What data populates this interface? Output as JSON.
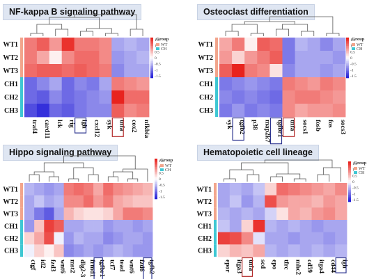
{
  "colors": {
    "high": "#e8231e",
    "mid": "#ffffff",
    "low": "#2520d8",
    "wt": "#f2a58c",
    "ch": "#3fc7d3",
    "highlight_box": "#2d3590",
    "tnfa_box": "#b22a2a"
  },
  "legend": {
    "title": "Group",
    "wt": "WT",
    "ch": "CH",
    "ticks": [
      "1.5",
      "1",
      "0.5",
      "0",
      "-0.5",
      "-1",
      "-1.5"
    ]
  },
  "chart_data": [
    {
      "type": "heatmap",
      "title": "NF-kappa B signaling pathway",
      "rows": [
        "WT1",
        "WT2",
        "WT3",
        "CH1",
        "CH2",
        "CH3"
      ],
      "columns": [
        "traf4",
        "card11",
        "lck",
        "rig",
        "igh",
        "cxcl12",
        "syk",
        "tnfa",
        "cox2",
        "nfkbia"
      ],
      "highlighted_columns": [
        "igh",
        "tnfa"
      ],
      "scale": [
        -1.5,
        1.5
      ],
      "values": [
        [
          0.9,
          1.1,
          0.7,
          1.4,
          0.9,
          0.9,
          0.8,
          -0.6,
          -0.5,
          -0.6
        ],
        [
          0.9,
          0.6,
          0.1,
          0.8,
          1.0,
          1.0,
          0.8,
          -0.7,
          -0.6,
          -0.5
        ],
        [
          1.0,
          1.1,
          1.1,
          1.0,
          1.1,
          1.0,
          0.9,
          -0.8,
          -0.6,
          -0.6
        ],
        [
          -1.0,
          -0.8,
          -0.6,
          -1.0,
          -0.8,
          -0.9,
          -0.6,
          0.9,
          0.8,
          0.7
        ],
        [
          -1.0,
          -1.1,
          -0.8,
          -1.0,
          -0.9,
          -0.8,
          -0.7,
          1.5,
          1.0,
          1.0
        ],
        [
          -1.2,
          -1.4,
          -1.0,
          -1.1,
          -0.9,
          -0.8,
          -0.8,
          1.1,
          0.8,
          0.9
        ]
      ]
    },
    {
      "type": "heatmap",
      "title": "Osteoclast differentiation",
      "rows": [
        "WT1",
        "WT2",
        "WT3",
        "CH1",
        "CH2",
        "CH3"
      ],
      "columns": [
        "syk",
        "tgfb2",
        "p38",
        "map2k7",
        "tgfbr1",
        "tnfa",
        "socs1",
        "fosb",
        "fos",
        "socs3"
      ],
      "highlighted_columns": [
        "tgfb2",
        "tgfbr1",
        "tnfa"
      ],
      "scale": [
        -1.5,
        1.5
      ],
      "values": [
        [
          0.6,
          0.9,
          0.1,
          1.1,
          1.0,
          -0.9,
          -0.5,
          -0.6,
          -0.8,
          -0.6
        ],
        [
          0.7,
          0.3,
          0.7,
          0.9,
          1.1,
          -0.9,
          -0.6,
          -0.6,
          -0.6,
          -0.7
        ],
        [
          1.1,
          1.5,
          0.9,
          0.8,
          0.2,
          -0.8,
          -0.6,
          -0.6,
          -0.7,
          -0.6
        ],
        [
          -0.9,
          -0.8,
          -0.7,
          -0.8,
          -0.9,
          0.9,
          0.8,
          0.7,
          0.9,
          0.8
        ],
        [
          -0.8,
          -0.9,
          -0.8,
          -0.9,
          -1.0,
          0.8,
          0.9,
          0.9,
          0.8,
          0.7
        ],
        [
          -0.9,
          -0.7,
          -0.9,
          -0.8,
          -0.9,
          0.8,
          0.6,
          0.7,
          0.7,
          0.8
        ]
      ]
    },
    {
      "type": "heatmap",
      "title": "Hippo signaling pathway",
      "rows": [
        "WT1",
        "WT2",
        "WT3",
        "CH1",
        "CH2",
        "CH3"
      ],
      "columns": [
        "ctgf",
        "id2",
        "fzd3",
        "wnt6",
        "mst2",
        "dlg2-3",
        "frmd1",
        "tgfbr1",
        "tcf7",
        "tead",
        "wnt6",
        "fzd6",
        "tgfb2"
      ],
      "highlighted_columns": [
        "tgfbr1",
        "tgfb2"
      ],
      "scale": [
        -1.5,
        1.5
      ],
      "values": [
        [
          -0.5,
          -0.6,
          -0.7,
          -0.6,
          0.9,
          1.0,
          0.9,
          0.6,
          1.0,
          0.8,
          0.7,
          0.6,
          0.5
        ],
        [
          -0.6,
          -0.4,
          -0.6,
          -0.5,
          0.8,
          0.8,
          1.0,
          0.7,
          0.9,
          0.6,
          0.5,
          0.4,
          0.4
        ],
        [
          -0.6,
          -0.9,
          -1.1,
          -0.6,
          0.5,
          0.3,
          0.2,
          0.2,
          0.3,
          0.6,
          0.9,
          0.9,
          0.8
        ],
        [
          -0.7,
          0.4,
          1.3,
          1.1,
          -0.6,
          -0.6,
          -0.5,
          -0.5,
          -0.7,
          -0.6,
          -0.6,
          -0.7,
          -0.6
        ],
        [
          0.3,
          0.6,
          1.2,
          -0.1,
          -0.7,
          -0.5,
          -0.6,
          -0.6,
          -0.8,
          -0.7,
          -0.6,
          -0.6,
          -0.7
        ],
        [
          -0.1,
          0.3,
          0.1,
          0.4,
          -0.8,
          -0.7,
          -0.6,
          -0.7,
          -0.6,
          -0.5,
          -0.6,
          -0.7,
          -0.7
        ]
      ]
    },
    {
      "type": "heatmap",
      "title": "Hematopoietic cell lineage",
      "rows": [
        "WT1",
        "WT2",
        "WT3",
        "CH1",
        "CH2",
        "CH3"
      ],
      "columns": [
        "epor",
        "itga3",
        "tnfa",
        "scd",
        "epo",
        "tfrc",
        "mhc2",
        "cd59",
        "itga4",
        "cd44",
        "igh"
      ],
      "highlighted_columns": [
        "tnfa",
        "igh"
      ],
      "scale": [
        -1.5,
        1.5
      ],
      "values": [
        [
          -0.6,
          -0.5,
          -0.6,
          -0.4,
          0.3,
          1.0,
          0.9,
          0.8,
          0.7,
          0.6,
          0.8
        ],
        [
          -0.6,
          -0.4,
          -0.7,
          -0.5,
          1.2,
          0.7,
          0.6,
          0.6,
          0.5,
          0.7,
          0.6
        ],
        [
          -0.5,
          -0.6,
          -0.5,
          -0.6,
          -0.3,
          0.2,
          0.6,
          0.5,
          0.7,
          0.8,
          0.6
        ],
        [
          -0.4,
          -0.6,
          0.3,
          1.4,
          -0.5,
          -0.6,
          -0.5,
          -0.6,
          -0.7,
          -0.6,
          -0.6
        ],
        [
          1.3,
          1.2,
          0.8,
          -0.2,
          -0.6,
          -0.6,
          -0.7,
          -0.6,
          -0.6,
          -0.7,
          -0.6
        ],
        [
          0.3,
          0.5,
          0.4,
          0.6,
          -0.5,
          -0.6,
          -0.5,
          -0.6,
          -0.5,
          -0.6,
          -0.5
        ]
      ]
    }
  ]
}
